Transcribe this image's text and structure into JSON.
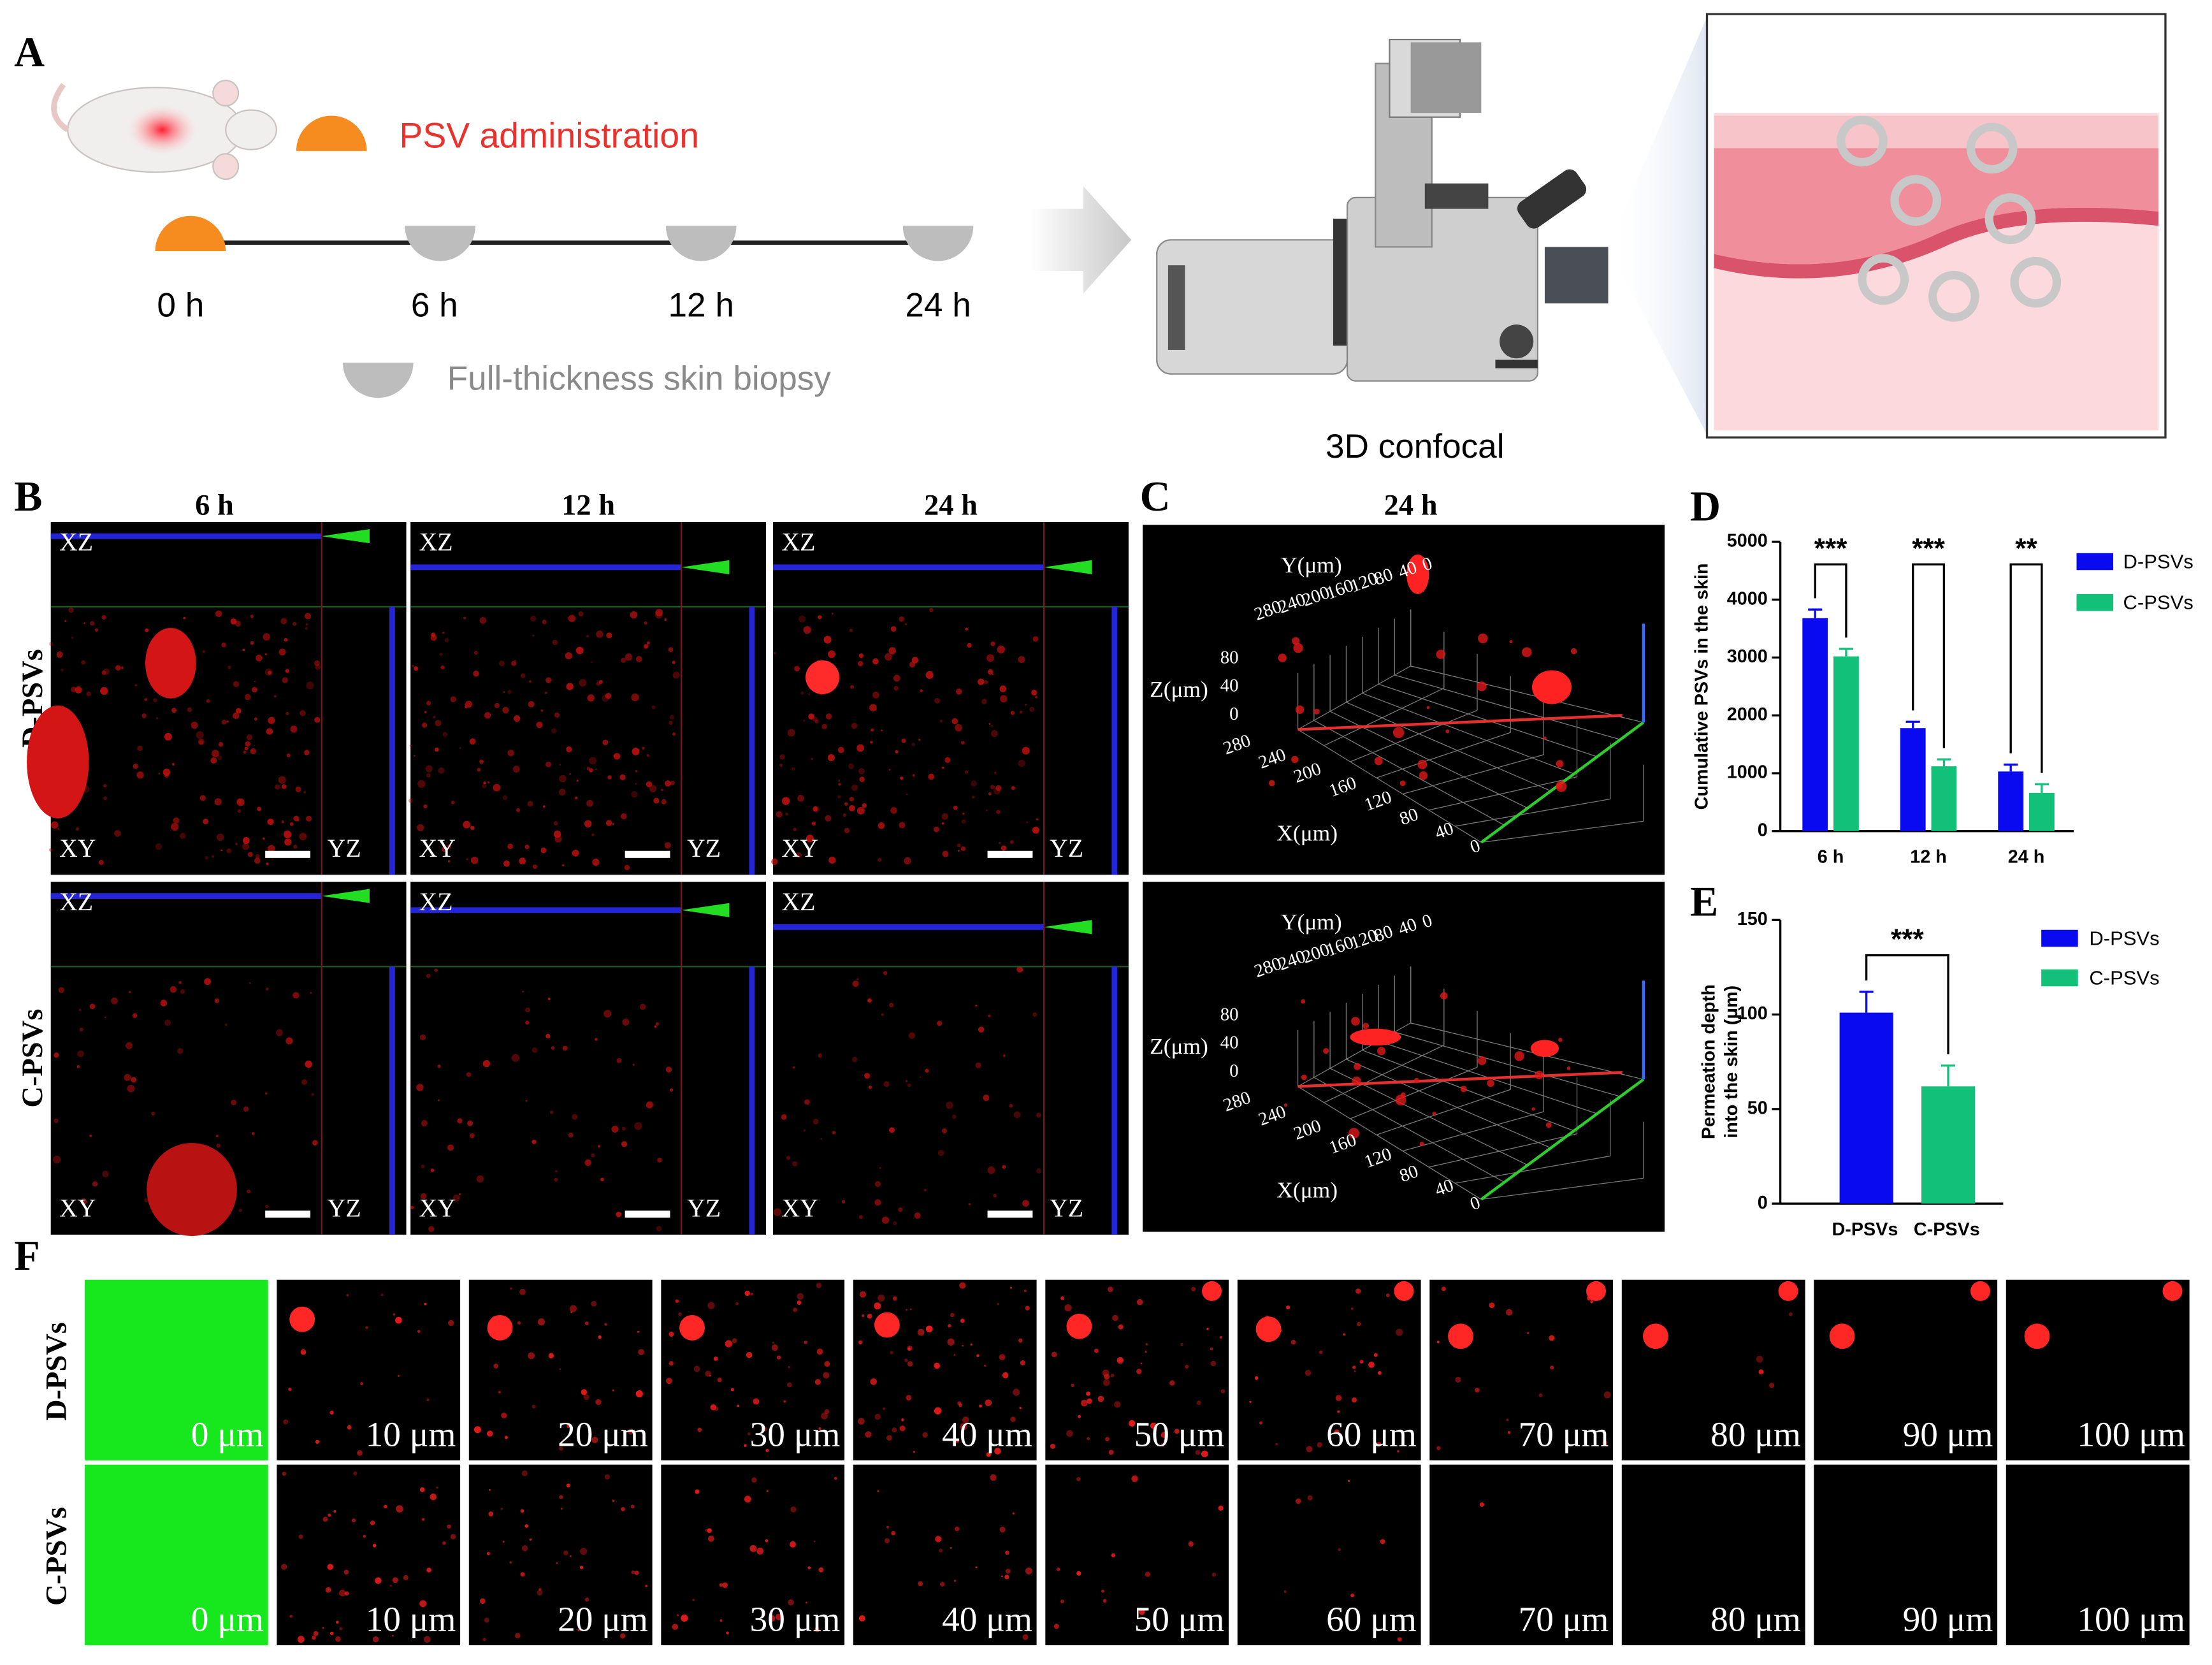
{
  "panel_a": {
    "label": "A",
    "administration": "PSV administration",
    "times": [
      "0 h",
      "6 h",
      "12 h",
      "24 h"
    ],
    "biopsy": "Full-thickness skin biopsy",
    "microscope": "3D confocal"
  },
  "panel_b": {
    "label": "B",
    "columns": [
      "6 h",
      "12 h",
      "24 h"
    ],
    "rows": [
      "D-PSVs",
      "C-PSVs"
    ],
    "views": {
      "xz": "XZ",
      "xy": "XY",
      "yz": "YZ"
    }
  },
  "panel_c": {
    "label": "C",
    "title": "24 h",
    "axis_labels": {
      "y": "Y(μm)",
      "z": "Z(μm)",
      "x": "X(μm)"
    },
    "y_ticks": [
      280,
      240,
      200,
      160,
      120,
      80,
      40,
      0
    ],
    "z_ticks": [
      80,
      40,
      0
    ],
    "x_ticks": [
      280,
      240,
      200,
      160,
      120,
      80,
      40,
      0
    ]
  },
  "panel_f": {
    "label": "F",
    "rows": [
      "D-PSVs",
      "C-PSVs"
    ],
    "depths": [
      "0 μm",
      "10 μm",
      "20 μm",
      "30 μm",
      "40 μm",
      "50 μm",
      "60 μm",
      "70 μm",
      "80 μm",
      "90 μm",
      "100 μm"
    ]
  },
  "chart_data": [
    {
      "type": "bar",
      "label": "D",
      "ylabel": "Cumulative PSVs in the skin",
      "categories": [
        "6 h",
        "12 h",
        "24 h"
      ],
      "series": [
        {
          "name": "D-PSVs",
          "color": "#0a0af0",
          "values": [
            3680,
            1780,
            1030
          ],
          "errors": [
            150,
            110,
            120
          ]
        },
        {
          "name": "C-PSVs",
          "color": "#13c07a",
          "values": [
            3020,
            1120,
            660
          ],
          "errors": [
            130,
            120,
            150
          ]
        }
      ],
      "annotations": [
        "***",
        "***",
        "**"
      ],
      "ylim": [
        0,
        5000
      ],
      "yticks": [
        0,
        1000,
        2000,
        3000,
        4000,
        5000
      ]
    },
    {
      "type": "bar",
      "label": "E",
      "ylabel": [
        "Permeation depth",
        "into the skin (μm)"
      ],
      "categories": [
        "D-PSVs",
        "C-PSVs"
      ],
      "values": [
        101,
        62
      ],
      "errors": [
        11,
        11
      ],
      "colors": [
        "#0a0af0",
        "#13c07a"
      ],
      "annotations": [
        "***"
      ],
      "ylim": [
        0,
        150
      ],
      "yticks": [
        0,
        50,
        100,
        150
      ]
    }
  ]
}
